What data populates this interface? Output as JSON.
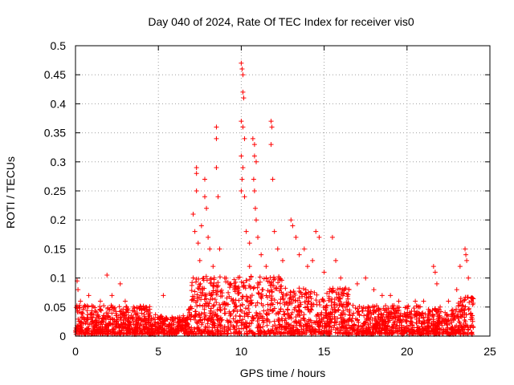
{
  "chart_data": {
    "type": "scatter",
    "title": "Day 040 of 2024, Rate Of TEC Index for receiver vis0",
    "xlabel": "GPS time / hours",
    "ylabel": "ROTI / TECUs",
    "xlim": [
      0,
      25
    ],
    "ylim": [
      0,
      0.5
    ],
    "x_ticks": [
      0,
      5,
      10,
      15,
      20,
      25
    ],
    "y_ticks": [
      0,
      0.05,
      0.1,
      0.15,
      0.2,
      0.25,
      0.3,
      0.35,
      0.4,
      0.45,
      0.5
    ],
    "x_tick_labels": [
      "0",
      "5",
      "10",
      "15",
      "20",
      "25"
    ],
    "y_tick_labels": [
      "0",
      "0.05",
      "0.1",
      "0.15",
      "0.2",
      "0.25",
      "0.3",
      "0.35",
      "0.4",
      "0.45",
      "0.5"
    ],
    "grid": true,
    "marker": "+",
    "marker_color": "#ff0000",
    "series": [
      {
        "name": "ROTI",
        "points": [
          [
            0.1,
            0.095
          ],
          [
            0.15,
            0.08
          ],
          [
            0.3,
            0.06
          ],
          [
            0.5,
            0.05
          ],
          [
            0.8,
            0.07
          ],
          [
            1.0,
            0.04
          ],
          [
            1.5,
            0.06
          ],
          [
            1.9,
            0.105
          ],
          [
            2.2,
            0.07
          ],
          [
            2.7,
            0.09
          ],
          [
            3.0,
            0.06
          ],
          [
            3.5,
            0.05
          ],
          [
            4.0,
            0.045
          ],
          [
            4.5,
            0.04
          ],
          [
            5.3,
            0.07
          ],
          [
            5.5,
            0.03
          ],
          [
            6.0,
            0.03
          ],
          [
            6.5,
            0.035
          ],
          [
            7.1,
            0.21
          ],
          [
            7.2,
            0.18
          ],
          [
            7.3,
            0.29
          ],
          [
            7.3,
            0.28
          ],
          [
            7.3,
            0.25
          ],
          [
            7.4,
            0.16
          ],
          [
            7.5,
            0.13
          ],
          [
            7.6,
            0.19
          ],
          [
            7.8,
            0.27
          ],
          [
            7.8,
            0.24
          ],
          [
            7.9,
            0.22
          ],
          [
            8.0,
            0.17
          ],
          [
            8.1,
            0.15
          ],
          [
            8.3,
            0.12
          ],
          [
            8.5,
            0.36
          ],
          [
            8.5,
            0.34
          ],
          [
            8.5,
            0.29
          ],
          [
            8.6,
            0.24
          ],
          [
            8.7,
            0.15
          ],
          [
            9.0,
            0.1
          ],
          [
            9.3,
            0.09
          ],
          [
            9.6,
            0.08
          ],
          [
            10.0,
            0.47
          ],
          [
            10.05,
            0.46
          ],
          [
            10.1,
            0.45
          ],
          [
            10.1,
            0.42
          ],
          [
            10.15,
            0.41
          ],
          [
            10.0,
            0.37
          ],
          [
            10.1,
            0.36
          ],
          [
            10.2,
            0.34
          ],
          [
            10.0,
            0.31
          ],
          [
            10.1,
            0.29
          ],
          [
            10.05,
            0.27
          ],
          [
            10.0,
            0.25
          ],
          [
            10.2,
            0.24
          ],
          [
            10.3,
            0.18
          ],
          [
            10.5,
            0.16
          ],
          [
            10.5,
            0.12
          ],
          [
            10.7,
            0.34
          ],
          [
            10.8,
            0.33
          ],
          [
            10.8,
            0.31
          ],
          [
            10.9,
            0.3
          ],
          [
            10.75,
            0.27
          ],
          [
            10.8,
            0.25
          ],
          [
            10.85,
            0.22
          ],
          [
            10.9,
            0.2
          ],
          [
            11.0,
            0.17
          ],
          [
            11.2,
            0.14
          ],
          [
            11.5,
            0.12
          ],
          [
            11.8,
            0.37
          ],
          [
            11.85,
            0.36
          ],
          [
            11.8,
            0.33
          ],
          [
            11.9,
            0.27
          ],
          [
            12.0,
            0.18
          ],
          [
            12.2,
            0.15
          ],
          [
            12.5,
            0.13
          ],
          [
            13.0,
            0.2
          ],
          [
            13.1,
            0.19
          ],
          [
            13.3,
            0.17
          ],
          [
            13.5,
            0.14
          ],
          [
            13.8,
            0.15
          ],
          [
            14.0,
            0.12
          ],
          [
            14.3,
            0.13
          ],
          [
            14.5,
            0.18
          ],
          [
            14.7,
            0.17
          ],
          [
            15.0,
            0.11
          ],
          [
            15.5,
            0.17
          ],
          [
            15.7,
            0.13
          ],
          [
            16.0,
            0.1
          ],
          [
            16.5,
            0.08
          ],
          [
            17.0,
            0.09
          ],
          [
            17.5,
            0.1
          ],
          [
            18.0,
            0.08
          ],
          [
            18.5,
            0.07
          ],
          [
            19.0,
            0.07
          ],
          [
            19.5,
            0.06
          ],
          [
            20.0,
            0.05
          ],
          [
            20.5,
            0.06
          ],
          [
            21.0,
            0.06
          ],
          [
            21.6,
            0.12
          ],
          [
            21.7,
            0.11
          ],
          [
            21.8,
            0.09
          ],
          [
            22.0,
            0.05
          ],
          [
            22.5,
            0.06
          ],
          [
            23.0,
            0.08
          ],
          [
            23.2,
            0.12
          ],
          [
            23.5,
            0.15
          ],
          [
            23.55,
            0.14
          ],
          [
            23.6,
            0.13
          ],
          [
            23.7,
            0.1
          ],
          [
            23.9,
            0.06
          ]
        ]
      }
    ]
  }
}
